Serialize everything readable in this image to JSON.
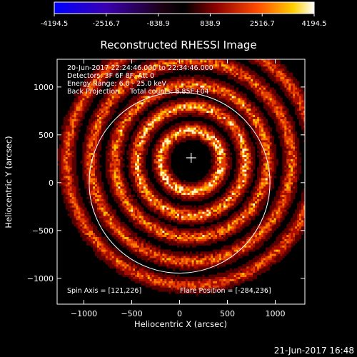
{
  "chart_data": {
    "type": "heatmap",
    "title": "Reconstructed RHESSI Image",
    "xlabel": "Heliocentric X (arcsec)",
    "ylabel": "Heliocentric Y (arcsec)",
    "xlim": [
      -1280,
      1310
    ],
    "ylim": [
      -1270,
      1290
    ],
    "xticks": [
      -1000,
      -500,
      0,
      500,
      1000
    ],
    "yticks": [
      -1000,
      -500,
      0,
      500,
      1000
    ],
    "colorbar": {
      "min": -4194.5,
      "max": 4194.5,
      "ticks": [
        "-4194.5",
        "-2516.7",
        "-838.9",
        "838.9",
        "2516.7",
        "4194.5"
      ],
      "colormap": [
        "#0000ff",
        "#000000",
        "#7a0000",
        "#ff4000",
        "#ffd000",
        "#ffffff"
      ]
    },
    "annotations": [
      "20-Jun-2017 22:24:46.000 to 22:34:46.000",
      "Detectors: 3F 6F 8F, Att 0",
      "Energy Range: 6.0 - 25.0 keV",
      "Back Projection     Total counts: 6.85E+04"
    ],
    "spin_axis": "Spin Axis = [121,226]",
    "flare_position": "Flare Position = [-284,236]",
    "solar_limb_radius_arcsec": 945,
    "disk_center": [
      0,
      0
    ],
    "crosshair_position": [
      121,
      260
    ],
    "ring_pattern": {
      "center": [
        121,
        226
      ],
      "rings": [
        {
          "radius": 320,
          "intensity": 0.95
        },
        {
          "radius": 570,
          "intensity": 0.85
        },
        {
          "radius": 800,
          "intensity": 0.75
        },
        {
          "radius": 1050,
          "intensity": 0.7
        },
        {
          "radius": 1300,
          "intensity": 0.65
        }
      ]
    }
  },
  "footer": {
    "timestamp": "21-Jun-2017 16:48"
  }
}
